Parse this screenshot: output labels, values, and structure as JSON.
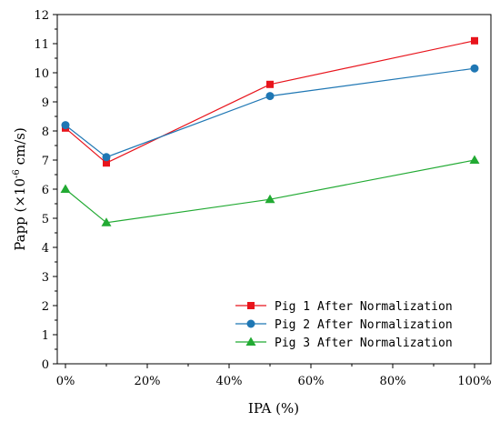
{
  "chart_data": {
    "type": "line",
    "xlabel": "IPA (%)",
    "ylabel_main": "Papp (×10",
    "ylabel_exp": "-6",
    "ylabel_unit": " cm/s)",
    "xlim": [
      -2,
      104
    ],
    "ylim": [
      0,
      12
    ],
    "xticks": [
      0,
      10,
      20,
      30,
      40,
      50,
      60,
      70,
      80,
      90,
      100
    ],
    "xtick_labels": [
      "0%",
      "",
      "20%",
      "",
      "40%",
      "",
      "60%",
      "",
      "80%",
      "",
      "100%"
    ],
    "yticks": [
      0,
      1,
      2,
      3,
      4,
      5,
      6,
      7,
      8,
      9,
      10,
      11,
      12
    ],
    "ytick_labels": [
      "0",
      "1",
      "2",
      "3",
      "4",
      "5",
      "6",
      "7",
      "8",
      "9",
      "10",
      "11",
      "12"
    ],
    "x": [
      0,
      10,
      50,
      100
    ],
    "legend_position": "bottom-right",
    "grid": false,
    "series": [
      {
        "name": "Pig 1 After Normalization",
        "values": [
          8.1,
          6.9,
          9.6,
          11.1
        ],
        "color": "#e8141c",
        "marker": "square"
      },
      {
        "name": "Pig 2 After Normalization",
        "values": [
          8.2,
          7.1,
          9.2,
          10.15
        ],
        "color": "#1f77b4",
        "marker": "circle"
      },
      {
        "name": "Pig 3 After Normalization",
        "values": [
          6.0,
          4.85,
          5.65,
          7.0
        ],
        "color": "#22aa33",
        "marker": "triangle"
      }
    ]
  }
}
